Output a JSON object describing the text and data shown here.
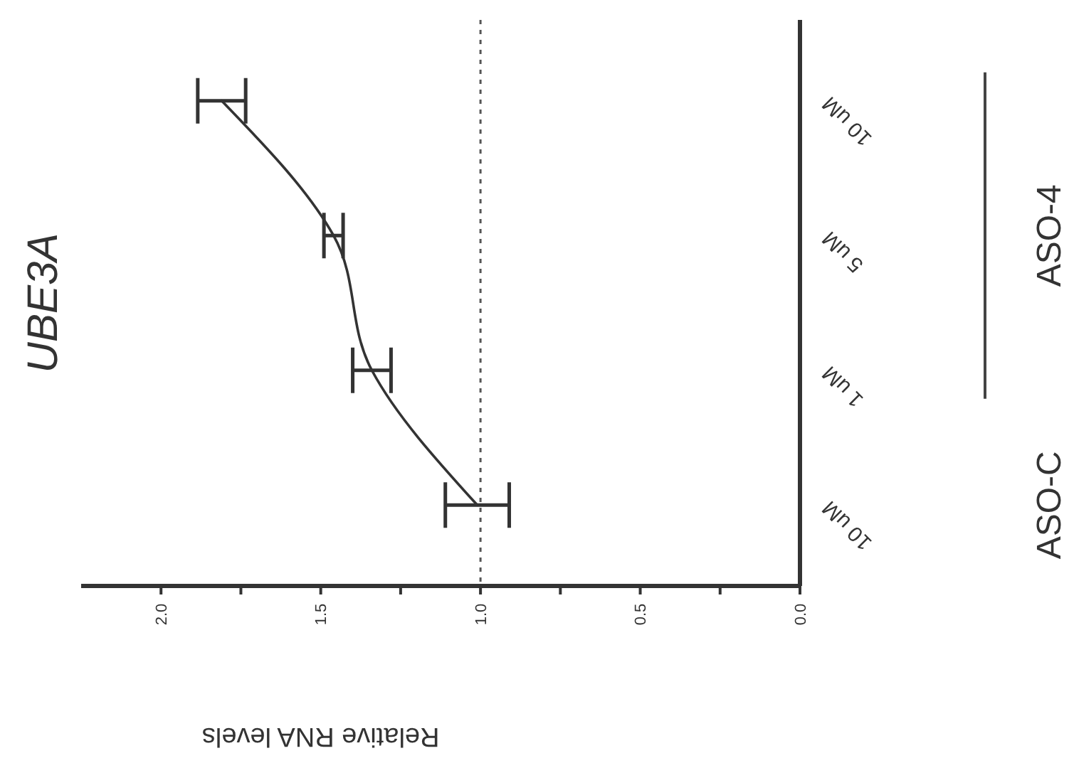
{
  "chart_data": {
    "type": "line",
    "orientation": "horizontal",
    "title": "UBE3A",
    "xlabel": "Relative RNA levels",
    "categories": [
      "10 uM",
      "5 uM",
      "1 uM",
      "10 uM"
    ],
    "values": [
      1.81,
      1.46,
      1.34,
      1.01
    ],
    "errors": [
      0.075,
      0.03,
      0.06,
      0.1
    ],
    "color": "#333333",
    "marker": "none",
    "line_style": "solid",
    "xlim": [
      2.25,
      0
    ],
    "xticks": [
      {
        "value": 2,
        "label": "2.0"
      },
      {
        "value": 1.75,
        "label": null
      },
      {
        "value": 1.5,
        "label": "1.5"
      },
      {
        "value": 1.25,
        "label": null
      },
      {
        "value": 1,
        "label": "1.0"
      },
      {
        "value": 0.75,
        "label": null
      },
      {
        "value": 0.5,
        "label": "0.5"
      },
      {
        "value": 0.25,
        "label": null
      },
      {
        "value": 0,
        "label": "0.0"
      }
    ],
    "ref_lines": [
      {
        "axis": "x",
        "value": 1,
        "line_style": "dotted",
        "color": "#555555"
      }
    ],
    "annotations": [
      "ASO-4",
      "ASO-C"
    ]
  }
}
